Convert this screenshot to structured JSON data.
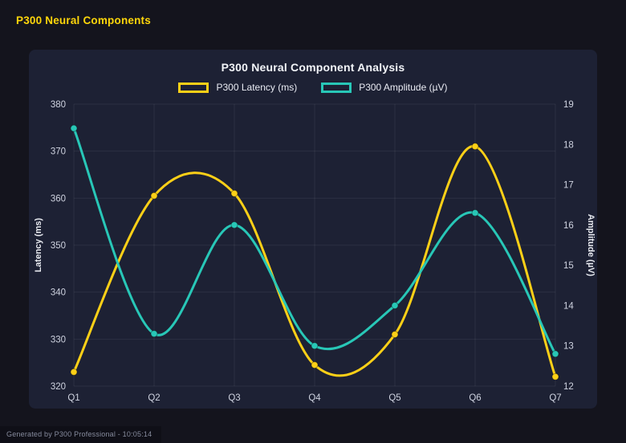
{
  "page": {
    "title": "P300 Neural Components",
    "footer": "Generated by P300 Professional - 10:05:14"
  },
  "colors": {
    "page_background": "#14141d",
    "card_background": "#1d2134",
    "page_title": "#ffd60a",
    "latency_series": "#fdd017",
    "amplitude_series": "#28c7b7",
    "tick_text": "#cfd3e0",
    "grid_line": "rgba(255,255,255,0.07)"
  },
  "chart_data": {
    "type": "line",
    "title": "P300 Neural Component Analysis",
    "categories": [
      "Q1",
      "Q2",
      "Q3",
      "Q4",
      "Q5",
      "Q6",
      "Q7"
    ],
    "series": [
      {
        "name": "P300 Latency (ms)",
        "axis": "left",
        "color": "#fdd017",
        "values": [
          323,
          360.5,
          361,
          324.5,
          331,
          371,
          322
        ]
      },
      {
        "name": "P300 Amplitude (µV)",
        "axis": "right",
        "color": "#28c7b7",
        "values": [
          18.4,
          13.3,
          16.0,
          13.0,
          14.0,
          16.3,
          12.8
        ]
      }
    ],
    "left_axis": {
      "label": "Latency (ms)",
      "min": 320,
      "max": 380,
      "step": 10
    },
    "right_axis": {
      "label": "Amplitude (µV)",
      "min": 12,
      "max": 19,
      "step": 1
    },
    "grid": true,
    "smooth": true,
    "legend_position": "top"
  }
}
